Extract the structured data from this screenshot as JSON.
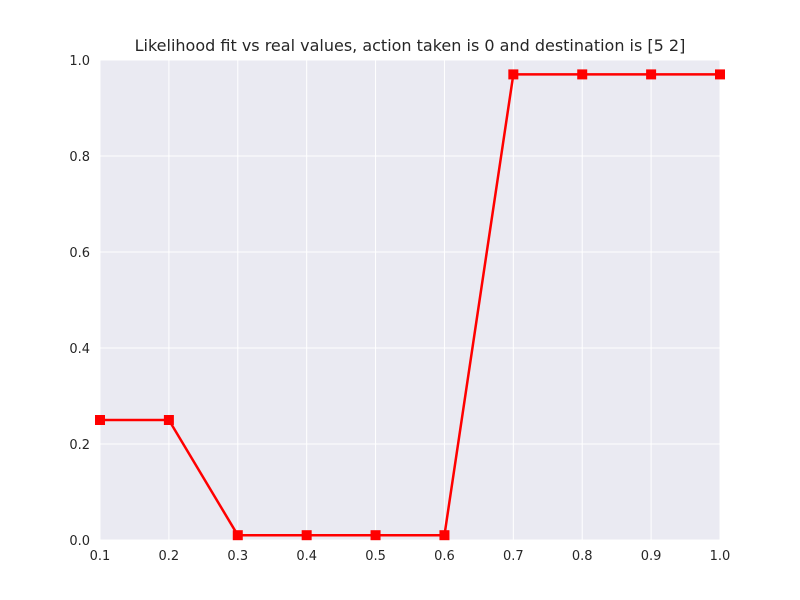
{
  "chart_data": {
    "type": "line",
    "title": "Likelihood fit vs real values, action taken is 0 and destination is [5 2]",
    "xlabel": "",
    "ylabel": "",
    "xlim": [
      0.1,
      1.0
    ],
    "ylim": [
      0.0,
      1.0
    ],
    "xticks": [
      "0.1",
      "0.2",
      "0.3",
      "0.4",
      "0.5",
      "0.6",
      "0.7",
      "0.8",
      "0.9",
      "1.0"
    ],
    "yticks": [
      "0.0",
      "0.2",
      "0.4",
      "0.6",
      "0.8",
      "1.0"
    ],
    "grid": true,
    "legend": "none",
    "series": [
      {
        "x": [
          0.1,
          0.2,
          0.3,
          0.4,
          0.5,
          0.6,
          0.7,
          0.8,
          0.9,
          1.0
        ],
        "values": [
          0.25,
          0.25,
          0.01,
          0.01,
          0.01,
          0.01,
          0.97,
          0.97,
          0.97,
          0.97
        ],
        "color": "#ff0000",
        "marker": "square"
      }
    ],
    "colors": {
      "plot_background": "#eaeaf2",
      "grid": "#ffffff",
      "text": "#262626"
    }
  }
}
